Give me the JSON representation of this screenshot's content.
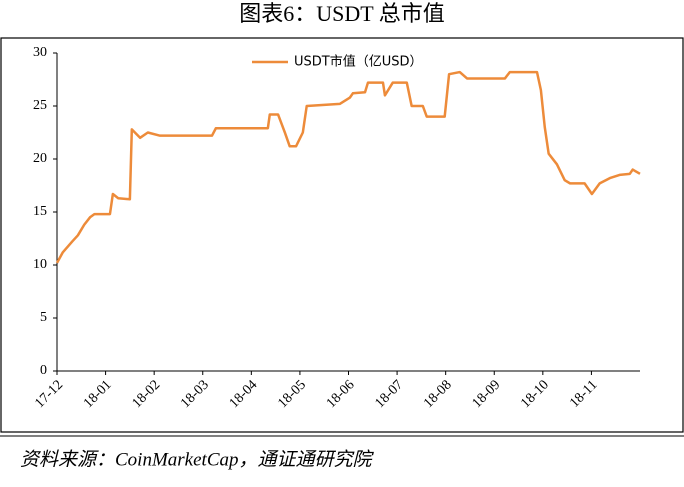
{
  "chart_data": {
    "type": "line",
    "title": "图表6：USDT 总市值",
    "source": "资料来源：CoinMarketCap，通证通研究院",
    "x": [
      0,
      0.12,
      0.31,
      0.43,
      0.56,
      0.68,
      0.77,
      1.09,
      1.15,
      1.26,
      1.5,
      1.54,
      1.71,
      1.87,
      2.12,
      3.19,
      3.27,
      4.34,
      4.38,
      4.55,
      4.69,
      4.79,
      4.92,
      5.06,
      5.14,
      5.82,
      6.03,
      6.09,
      6.34,
      6.4,
      6.71,
      6.75,
      6.91,
      7.2,
      7.3,
      7.53,
      7.61,
      7.98,
      8.07,
      8.29,
      8.44,
      9.22,
      9.32,
      9.88,
      9.96,
      10.04,
      10.12,
      10.29,
      10.45,
      10.56,
      10.86,
      11.01,
      11.17,
      11.38,
      11.58,
      11.79,
      11.85,
      12
    ],
    "series": [
      {
        "name": "USDT市值（亿USD）",
        "color": "#ed8b3a",
        "values": [
          10.2,
          11.2,
          12.2,
          12.8,
          13.8,
          14.5,
          14.8,
          14.8,
          16.7,
          16.3,
          16.2,
          22.8,
          22.0,
          22.5,
          22.2,
          22.2,
          22.9,
          22.9,
          24.2,
          24.2,
          22.5,
          21.2,
          21.2,
          22.5,
          25.0,
          25.2,
          25.8,
          26.2,
          26.3,
          27.2,
          27.2,
          26.0,
          27.2,
          27.2,
          25.0,
          25.0,
          24.0,
          24.0,
          28.0,
          28.2,
          27.6,
          27.6,
          28.2,
          28.2,
          26.5,
          23.0,
          20.5,
          19.5,
          18.0,
          17.7,
          17.7,
          16.7,
          17.7,
          18.2,
          18.5,
          18.6,
          19.0,
          18.6
        ]
      }
    ],
    "xlim": [
      0,
      12
    ],
    "xticks": [
      {
        "value": 0,
        "label": "17-12"
      },
      {
        "value": 1,
        "label": "18-01"
      },
      {
        "value": 2,
        "label": "18-02"
      },
      {
        "value": 3,
        "label": "18-03"
      },
      {
        "value": 4,
        "label": "18-04"
      },
      {
        "value": 5,
        "label": "18-05"
      },
      {
        "value": 6,
        "label": "18-06"
      },
      {
        "value": 7,
        "label": "18-07"
      },
      {
        "value": 8,
        "label": "18-08"
      },
      {
        "value": 9,
        "label": "18-09"
      },
      {
        "value": 10,
        "label": "18-10"
      },
      {
        "value": 11,
        "label": "18-11"
      }
    ],
    "ylim": [
      0,
      30
    ],
    "yticks": [
      0,
      5,
      10,
      15,
      20,
      25,
      30
    ],
    "grid": false,
    "legend": "top"
  }
}
